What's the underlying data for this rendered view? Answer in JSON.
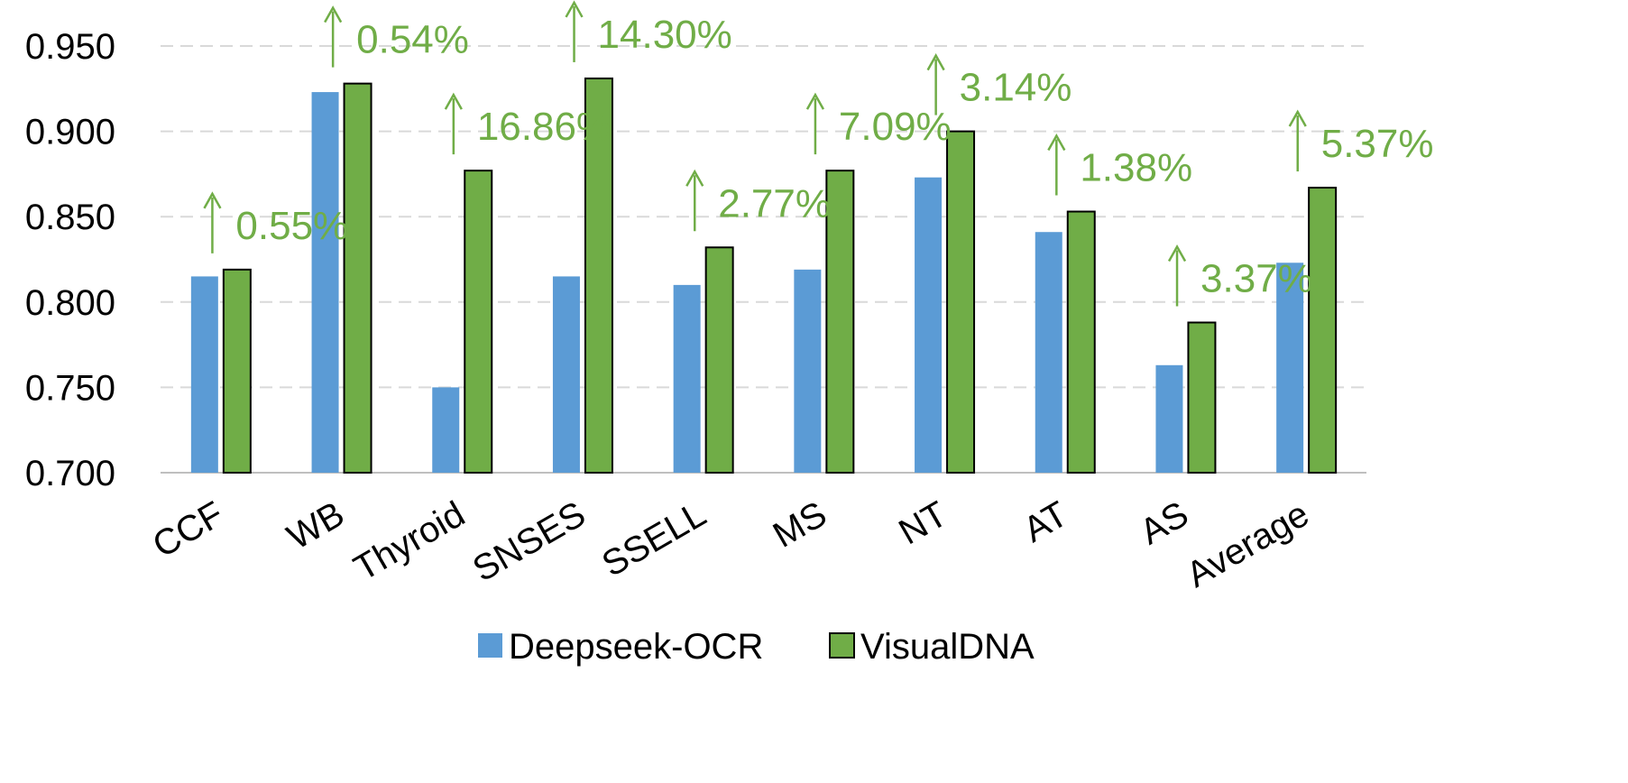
{
  "chart_data": {
    "type": "bar",
    "title": "",
    "xlabel": "",
    "ylabel": "",
    "ylim": [
      0.7,
      0.95
    ],
    "yticks": [
      "0.700",
      "0.750",
      "0.800",
      "0.850",
      "0.900",
      "0.950"
    ],
    "ytick_values": [
      0.7,
      0.75,
      0.8,
      0.85,
      0.9,
      0.95
    ],
    "grid": true,
    "legend_position": "bottom",
    "categories": [
      "CCF",
      "WB",
      "Thyroid",
      "SNSES",
      "SSELL",
      "MS",
      "NT",
      "AT",
      "AS",
      "Average"
    ],
    "series": [
      {
        "name": "Deepseek-OCR",
        "color": "#5b9bd5",
        "values": [
          0.815,
          0.923,
          0.75,
          0.815,
          0.81,
          0.819,
          0.873,
          0.841,
          0.763,
          0.823
        ]
      },
      {
        "name": "VisualDNA",
        "color": "#70ad47",
        "values": [
          0.819,
          0.928,
          0.877,
          0.931,
          0.832,
          0.877,
          0.9,
          0.853,
          0.788,
          0.867
        ]
      }
    ],
    "annotations": [
      {
        "category": "CCF",
        "text": "0.55%"
      },
      {
        "category": "WB",
        "text": "0.54%"
      },
      {
        "category": "Thyroid",
        "text": "16.86%"
      },
      {
        "category": "SNSES",
        "text": "14.30%"
      },
      {
        "category": "SSELL",
        "text": "2.77%"
      },
      {
        "category": "MS",
        "text": "7.09%"
      },
      {
        "category": "NT",
        "text": "3.14%"
      },
      {
        "category": "AT",
        "text": "1.38%"
      },
      {
        "category": "AS",
        "text": "3.37%"
      },
      {
        "category": "Average",
        "text": "5.37%"
      }
    ],
    "annotation_color": "#70ad47",
    "annotation_arrow": "up"
  }
}
